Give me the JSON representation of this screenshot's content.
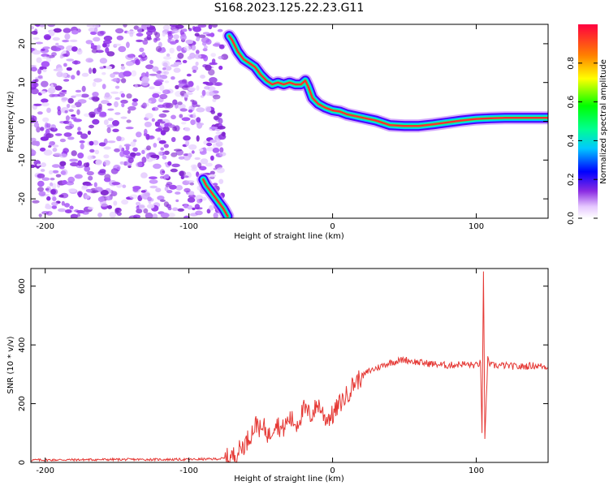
{
  "figure": {
    "title": "S168.2023.125.22.23.G11"
  },
  "chart_data": [
    {
      "type": "heatmap",
      "title": "S168.2023.125.22.23.G11",
      "xlabel": "Height of straight line (km)",
      "ylabel": "Frequency (Hz)",
      "xlim": [
        -210,
        150
      ],
      "ylim": [
        -25,
        25
      ],
      "xticks": [
        -200,
        -100,
        0,
        100
      ],
      "yticks": [
        -20,
        -10,
        0,
        10,
        20
      ],
      "colorbar": {
        "label": "Normalized spectral amplitude",
        "range": [
          0,
          1
        ],
        "ticks": [
          0.0,
          0.2,
          0.4,
          0.6,
          0.8
        ]
      },
      "ridge": {
        "x": [
          -72,
          -70,
          -66,
          -62,
          -58,
          -54,
          -50,
          -46,
          -42,
          -38,
          -34,
          -30,
          -26,
          -22,
          -19,
          -17,
          -14,
          -10,
          -5,
          0,
          5,
          10,
          20,
          30,
          40,
          50,
          60,
          70,
          80,
          90,
          100,
          110,
          120,
          130,
          140,
          150
        ],
        "y": [
          22,
          21,
          18,
          16,
          15,
          14,
          12,
          10.5,
          9.5,
          10,
          9.5,
          10,
          9.5,
          9.5,
          10.5,
          9,
          6,
          4.5,
          3.5,
          2.8,
          2.5,
          1.8,
          1,
          0.2,
          -1,
          -1.2,
          -1.2,
          -0.8,
          -0.3,
          0.2,
          0.6,
          0.8,
          0.9,
          0.9,
          0.9,
          0.9
        ]
      },
      "secondary_ridge": {
        "x": [
          -90,
          -88,
          -85,
          -82,
          -79,
          -76,
          -73
        ],
        "y": [
          -15,
          -16.5,
          -18,
          -19.5,
          -21,
          -22.5,
          -24.5
        ]
      },
      "noise_region_x": [
        -210,
        -75
      ]
    },
    {
      "type": "line",
      "xlabel": "Height of straight line (km)",
      "ylabel": "SNR (10 * v/v)",
      "xlim": [
        -210,
        150
      ],
      "ylim": [
        0,
        660
      ],
      "xticks": [
        -200,
        -100,
        0,
        100
      ],
      "yticks": [
        0,
        200,
        400,
        600
      ],
      "color": "#e53935",
      "x": [
        -210,
        -150,
        -100,
        -80,
        -72,
        -68,
        -60,
        -52,
        -50,
        -48,
        -44,
        -40,
        -35,
        -30,
        -25,
        -20,
        -15,
        -10,
        -5,
        0,
        5,
        10,
        15,
        20,
        25,
        30,
        35,
        40,
        45,
        50,
        60,
        70,
        80,
        90,
        100,
        103,
        104,
        105,
        106,
        108,
        110,
        120,
        130,
        140,
        150
      ],
      "y": [
        8,
        10,
        10,
        12,
        15,
        25,
        70,
        140,
        100,
        120,
        90,
        140,
        110,
        150,
        130,
        180,
        160,
        200,
        150,
        160,
        200,
        230,
        270,
        290,
        310,
        320,
        330,
        340,
        345,
        350,
        340,
        335,
        330,
        335,
        330,
        340,
        100,
        650,
        80,
        350,
        330,
        330,
        325,
        330,
        325
      ]
    }
  ]
}
